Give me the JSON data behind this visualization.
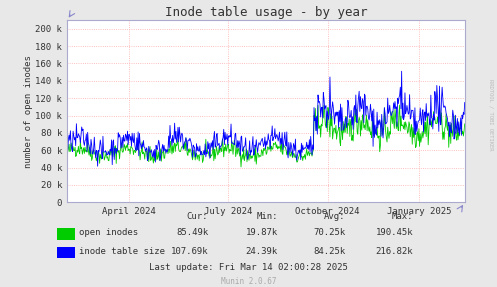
{
  "title": "Inode table usage - by year",
  "ylabel": "number of open inodes",
  "bg_color": "#e8e8e8",
  "plot_bg_color": "#ffffff",
  "grid_color": "#ffaaaa",
  "x_ticks": [
    "April 2024",
    "July 2024",
    "October 2024",
    "January 2025"
  ],
  "x_tick_pos": [
    0.155,
    0.405,
    0.655,
    0.885
  ],
  "y_ticks": [
    0,
    20000,
    40000,
    60000,
    80000,
    100000,
    120000,
    140000,
    160000,
    180000,
    200000
  ],
  "y_tick_labels": [
    "0",
    "20 k",
    "40 k",
    "60 k",
    "80 k",
    "100 k",
    "120 k",
    "140 k",
    "160 k",
    "180 k",
    "200 k"
  ],
  "ylim": [
    0,
    210000
  ],
  "green_color": "#00cc00",
  "blue_color": "#0000ff",
  "legend": [
    {
      "label": "open inodes",
      "cur": "85.49k",
      "min": "19.87k",
      "avg": "70.25k",
      "max": "190.45k"
    },
    {
      "label": "inode table size",
      "cur": "107.69k",
      "min": "24.39k",
      "avg": "84.25k",
      "max": "216.82k"
    }
  ],
  "last_update": "Last update: Fri Mar 14 02:00:28 2025",
  "munin_version": "Munin 2.0.67",
  "rrdtool_text": "RRDTOOL / TOBI OETIKER"
}
